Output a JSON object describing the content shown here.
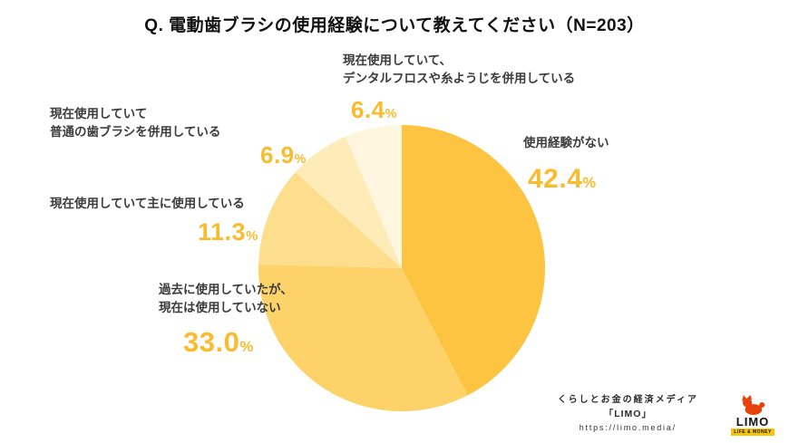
{
  "title": "Q. 電動歯ブラシの使用経験について教えてください（N=203）",
  "chart_data": {
    "type": "pie",
    "title": "電動歯ブラシの使用経験",
    "n_label": "N=203",
    "unit": "%",
    "start_angle": "top",
    "direction": "clockwise",
    "value_color": "#f9bc2f",
    "legend_position": "labels-around-pie",
    "segments": [
      {
        "label": "使用経験がない",
        "value": 42.4,
        "value_display": "42.4",
        "color": "#fcc440"
      },
      {
        "label": "過去に使用していたが、\n現在は使用していない",
        "value": 33.0,
        "value_display": "33.0",
        "color": "#fcd269"
      },
      {
        "label": "現在使用していて主に使用している",
        "value": 11.3,
        "value_display": "11.3",
        "color": "#fdde8d"
      },
      {
        "label": "現在使用していて\n普通の歯ブラシを併用している",
        "value": 6.9,
        "value_display": "6.9",
        "color": "#fdebb8"
      },
      {
        "label": "現在使用していて、\nデンタルフロスや糸ようじを併用している",
        "value": 6.4,
        "value_display": "6.4",
        "color": "#fef6df"
      }
    ]
  },
  "footer": {
    "tagline": "くらしとお金の経済メディア",
    "brand": "「LIMO」",
    "url": "https://limo.media/",
    "logo_text": "LIMO",
    "logo_subtext": "LIFE & MONEY"
  }
}
